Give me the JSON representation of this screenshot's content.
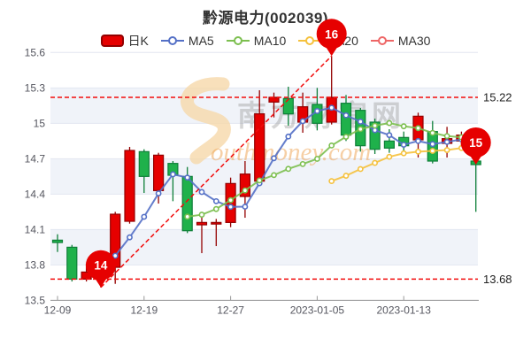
{
  "title": "黔源电力(002039)",
  "legend": [
    {
      "label": "日K",
      "type": "candle",
      "series": "k"
    },
    {
      "label": "MA5",
      "type": "ma",
      "series": "ma5"
    },
    {
      "label": "MA10",
      "type": "ma",
      "series": "ma10"
    },
    {
      "label": "MA20",
      "type": "ma",
      "series": "ma20"
    },
    {
      "label": "MA30",
      "type": "ma",
      "series": "ma30"
    }
  ],
  "colors": {
    "candle_up_fill": "#e60000",
    "candle_up_border": "#930000",
    "candle_down_fill": "#1fb14b",
    "candle_down_border": "#0e7f38",
    "ma5": "#5470c6",
    "ma10": "#7cbf4f",
    "ma20": "#f5c13d",
    "ma30": "#ee6666",
    "dashed_line": "#f20c0c",
    "marker_pin": "#e60000",
    "band": "#f0f3f9",
    "gridline": "#e2e6f0",
    "axis_line": "#999999",
    "tick_text": "#55565f",
    "side_label_text": "#222222"
  },
  "watermark": {
    "cn": "南方财富网",
    "en": "outhmoney.com"
  },
  "chart_data": {
    "type": "candlestick",
    "title": "黔源电力(002039)",
    "ylim": [
      13.5,
      15.6
    ],
    "y_ticks": [
      "15.6",
      "15.3",
      "15",
      "14.7",
      "14.4",
      "14.1",
      "13.8",
      "13.5"
    ],
    "x_ticks": [
      {
        "index": 0,
        "label": "12-09"
      },
      {
        "index": 6,
        "label": "12-19"
      },
      {
        "index": 12,
        "label": "12-27"
      },
      {
        "index": 18,
        "label": "2023-01-05"
      },
      {
        "index": 24,
        "label": "2023-01-13"
      }
    ],
    "categories": [
      "12-09",
      "12-12",
      "12-13",
      "12-14",
      "12-15",
      "12-16",
      "12-19",
      "12-20",
      "12-21",
      "12-22",
      "12-23",
      "12-26",
      "12-27",
      "12-28",
      "12-29",
      "12-30",
      "2023-01-03",
      "2023-01-04",
      "2023-01-05",
      "2023-01-06",
      "2023-01-09",
      "2023-01-10",
      "2023-01-11",
      "2023-01-12",
      "2023-01-13",
      "2023-01-16",
      "2023-01-17",
      "2023-01-18",
      "2023-01-19",
      "2023-01-20"
    ],
    "ohlc": [
      {
        "o": 14.01,
        "h": 14.06,
        "l": 13.91,
        "c": 13.99
      },
      {
        "o": 13.95,
        "h": 13.97,
        "l": 13.66,
        "c": 13.68
      },
      {
        "o": 13.68,
        "h": 13.81,
        "l": 13.66,
        "c": 13.74
      },
      {
        "o": 13.7,
        "h": 13.78,
        "l": 13.61,
        "c": 13.75
      },
      {
        "o": 13.78,
        "h": 14.25,
        "l": 13.64,
        "c": 14.23
      },
      {
        "o": 14.17,
        "h": 14.8,
        "l": 14.15,
        "c": 14.77
      },
      {
        "o": 14.76,
        "h": 14.78,
        "l": 14.41,
        "c": 14.55
      },
      {
        "o": 14.43,
        "h": 14.75,
        "l": 14.32,
        "c": 14.73
      },
      {
        "o": 14.66,
        "h": 14.68,
        "l": 14.34,
        "c": 14.56
      },
      {
        "o": 14.55,
        "h": 14.63,
        "l": 14.07,
        "c": 14.09
      },
      {
        "o": 14.14,
        "h": 14.24,
        "l": 13.9,
        "c": 14.16
      },
      {
        "o": 14.15,
        "h": 14.19,
        "l": 13.96,
        "c": 14.16
      },
      {
        "o": 14.16,
        "h": 14.54,
        "l": 14.12,
        "c": 14.49
      },
      {
        "o": 14.38,
        "h": 14.68,
        "l": 14.2,
        "c": 14.57
      },
      {
        "o": 14.51,
        "h": 15.28,
        "l": 14.48,
        "c": 15.08
      },
      {
        "o": 15.18,
        "h": 15.26,
        "l": 15.05,
        "c": 15.22
      },
      {
        "o": 15.21,
        "h": 15.31,
        "l": 14.98,
        "c": 15.08
      },
      {
        "o": 15.01,
        "h": 15.26,
        "l": 14.92,
        "c": 15.14
      },
      {
        "o": 15.16,
        "h": 15.3,
        "l": 14.94,
        "c": 15.0
      },
      {
        "o": 15.01,
        "h": 15.57,
        "l": 14.99,
        "c": 15.22
      },
      {
        "o": 15.17,
        "h": 15.24,
        "l": 14.85,
        "c": 14.9
      },
      {
        "o": 15.11,
        "h": 15.13,
        "l": 14.76,
        "c": 14.81
      },
      {
        "o": 15.01,
        "h": 15.04,
        "l": 14.74,
        "c": 14.78
      },
      {
        "o": 14.85,
        "h": 14.95,
        "l": 14.75,
        "c": 14.79
      },
      {
        "o": 14.88,
        "h": 14.93,
        "l": 14.77,
        "c": 14.81
      },
      {
        "o": 14.86,
        "h": 15.09,
        "l": 14.71,
        "c": 15.06
      },
      {
        "o": 14.93,
        "h": 15.02,
        "l": 14.66,
        "c": 14.68
      },
      {
        "o": 14.83,
        "h": 14.97,
        "l": 14.71,
        "c": 14.87
      },
      {
        "o": 14.85,
        "h": 14.93,
        "l": 14.8,
        "c": 14.9
      },
      {
        "o": 14.68,
        "h": 14.7,
        "l": 14.25,
        "c": 14.65
      }
    ],
    "moving_average_periods": [
      5,
      10,
      20,
      30
    ],
    "annotations": {
      "max_close_line": {
        "value": 15.22,
        "label": "15.22"
      },
      "min_close_line": {
        "value": 13.68,
        "label": "13.68"
      },
      "trend_line": {
        "from": {
          "index": 3,
          "price": 13.61
        },
        "to": {
          "index": 19,
          "price": 15.57
        }
      },
      "markers": [
        {
          "index": 3,
          "price": 13.61,
          "label": "14"
        },
        {
          "index": 19,
          "price": 15.57,
          "label": "16"
        },
        {
          "index": 29,
          "price": 14.65,
          "label": "15"
        }
      ]
    },
    "grid": "horizontal-bands",
    "legend_position": "top"
  }
}
